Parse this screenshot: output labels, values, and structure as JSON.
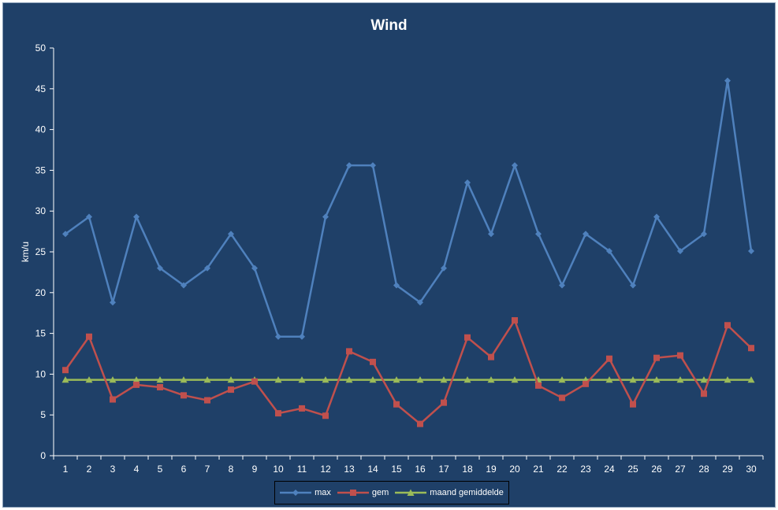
{
  "chart_data": {
    "type": "line",
    "title": "Wind",
    "xlabel": "",
    "ylabel": "km/u",
    "ylim": [
      0,
      50
    ],
    "yticks": [
      "0",
      "5",
      "10",
      "15",
      "20",
      "25",
      "30",
      "35",
      "40",
      "45",
      "50"
    ],
    "categories": [
      "1",
      "2",
      "3",
      "4",
      "5",
      "6",
      "7",
      "8",
      "9",
      "10",
      "11",
      "12",
      "13",
      "14",
      "15",
      "16",
      "17",
      "18",
      "19",
      "20",
      "21",
      "22",
      "23",
      "24",
      "25",
      "26",
      "27",
      "28",
      "29",
      "30"
    ],
    "series": [
      {
        "name": "max",
        "color": "#4f81bd",
        "marker": "diamond",
        "values": [
          27.2,
          29.3,
          18.8,
          29.3,
          23.0,
          20.9,
          23.0,
          27.2,
          23.0,
          14.6,
          14.6,
          29.3,
          35.6,
          35.6,
          20.9,
          18.8,
          23.0,
          33.5,
          27.2,
          35.6,
          27.2,
          20.9,
          27.2,
          25.1,
          20.9,
          29.3,
          25.1,
          27.2,
          46.0,
          25.1
        ]
      },
      {
        "name": "gem",
        "color": "#c0504d",
        "marker": "square",
        "values": [
          10.5,
          14.6,
          6.9,
          8.7,
          8.4,
          7.4,
          6.8,
          8.1,
          9.1,
          5.2,
          5.8,
          4.9,
          12.8,
          11.5,
          6.3,
          3.9,
          6.5,
          14.5,
          12.1,
          16.6,
          8.6,
          7.1,
          8.8,
          11.9,
          6.3,
          12.0,
          12.3,
          7.6,
          16.0,
          13.2
        ]
      },
      {
        "name": "maand gemiddelde",
        "color": "#9bbb59",
        "marker": "triangle",
        "values": [
          9.3,
          9.3,
          9.3,
          9.3,
          9.3,
          9.3,
          9.3,
          9.3,
          9.3,
          9.3,
          9.3,
          9.3,
          9.3,
          9.3,
          9.3,
          9.3,
          9.3,
          9.3,
          9.3,
          9.3,
          9.3,
          9.3,
          9.3,
          9.3,
          9.3,
          9.3,
          9.3,
          9.3,
          9.3,
          9.3
        ]
      }
    ],
    "grid": false,
    "legend": "bottom"
  },
  "colors": {
    "background": "#1f4068",
    "axis": "#ffffff",
    "text": "#ffffff"
  }
}
